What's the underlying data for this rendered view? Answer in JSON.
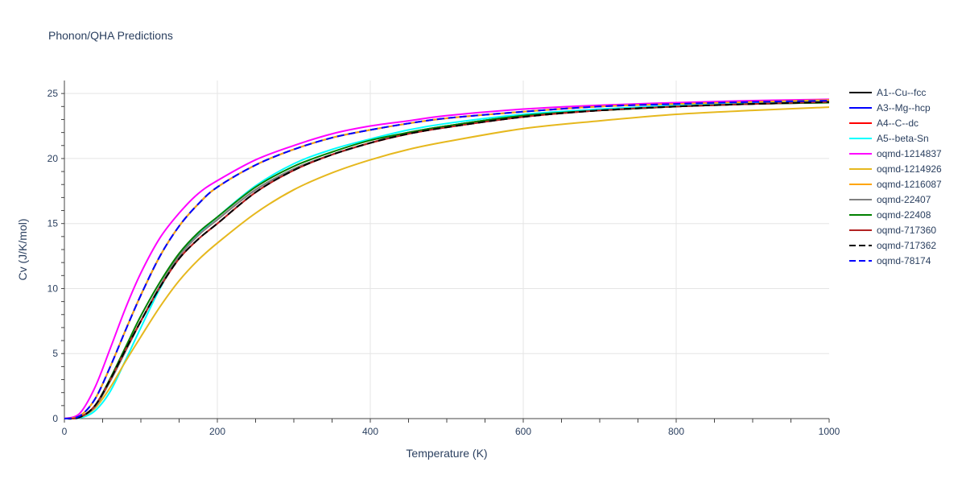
{
  "chart_data": {
    "type": "line",
    "title": "Phonon/QHA Predictions",
    "xlabel": "Temperature (K)",
    "ylabel": "Cv (J/K/mol)",
    "xlim": [
      0,
      1000
    ],
    "ylim": [
      0,
      26
    ],
    "xticks": [
      0,
      200,
      400,
      600,
      800,
      1000
    ],
    "yticks": [
      0,
      5,
      10,
      15,
      20,
      25
    ],
    "grid": true,
    "legend_position": "right",
    "x": [
      0,
      20,
      40,
      60,
      80,
      100,
      125,
      150,
      175,
      200,
      250,
      300,
      350,
      400,
      450,
      500,
      600,
      700,
      800,
      900,
      1000
    ],
    "series": [
      {
        "name": "A1--Cu--fcc",
        "color": "#000000",
        "dash": "solid",
        "values": [
          0,
          0.1,
          0.9,
          2.9,
          5.2,
          7.5,
          10.2,
          12.5,
          14.1,
          15.3,
          17.6,
          19.2,
          20.3,
          21.2,
          22.0,
          22.5,
          23.3,
          23.7,
          24.0,
          24.2,
          24.3
        ]
      },
      {
        "name": "A3--Mg--hcp",
        "color": "#0000ff",
        "dash": "solid",
        "values": [
          0,
          0.2,
          1.5,
          4.0,
          6.8,
          9.5,
          12.5,
          14.8,
          16.5,
          17.8,
          19.5,
          20.7,
          21.6,
          22.2,
          22.7,
          23.1,
          23.6,
          24.0,
          24.2,
          24.35,
          24.45
        ]
      },
      {
        "name": "A4--C--dc",
        "color": "#ff0000",
        "dash": "solid",
        "values": [
          0,
          0.1,
          1.0,
          3.0,
          5.3,
          7.5,
          10.1,
          12.3,
          13.8,
          15.0,
          17.4,
          19.1,
          20.3,
          21.2,
          21.9,
          22.4,
          23.2,
          23.7,
          24.0,
          24.2,
          24.35
        ]
      },
      {
        "name": "A5--beta-Sn",
        "color": "#00ffff",
        "dash": "solid",
        "values": [
          0,
          0.05,
          0.6,
          2.1,
          4.5,
          7.0,
          10.0,
          12.5,
          14.2,
          15.5,
          17.9,
          19.6,
          20.7,
          21.5,
          22.2,
          22.7,
          23.4,
          23.8,
          24.1,
          24.3,
          24.4
        ]
      },
      {
        "name": "oqmd-1214837",
        "color": "#ff00ff",
        "dash": "solid",
        "values": [
          0,
          0.4,
          2.4,
          5.4,
          8.5,
          11.2,
          13.9,
          15.8,
          17.3,
          18.3,
          19.9,
          21.0,
          21.9,
          22.5,
          22.9,
          23.3,
          23.8,
          24.1,
          24.3,
          24.45,
          24.55
        ]
      },
      {
        "name": "oqmd-1214926",
        "color": "#e6b81e",
        "dash": "solid",
        "values": [
          0,
          0.1,
          0.8,
          2.4,
          4.4,
          6.3,
          8.6,
          10.6,
          12.2,
          13.5,
          15.8,
          17.6,
          18.9,
          19.9,
          20.7,
          21.3,
          22.3,
          22.9,
          23.4,
          23.7,
          23.95
        ]
      },
      {
        "name": "oqmd-1216087",
        "color": "#ffa500",
        "dash": "solid",
        "values": [
          0,
          0.2,
          1.5,
          4.0,
          6.8,
          9.5,
          12.5,
          14.8,
          16.5,
          17.8,
          19.5,
          20.7,
          21.6,
          22.2,
          22.7,
          23.1,
          23.6,
          24.0,
          24.2,
          24.35,
          24.5
        ]
      },
      {
        "name": "oqmd-22407",
        "color": "#808080",
        "dash": "solid",
        "values": [
          0,
          0.1,
          0.9,
          2.9,
          5.2,
          7.5,
          10.2,
          12.5,
          14.1,
          15.3,
          17.6,
          19.2,
          20.3,
          21.2,
          22.0,
          22.5,
          23.3,
          23.7,
          24.0,
          24.2,
          24.3
        ]
      },
      {
        "name": "oqmd-22408",
        "color": "#008000",
        "dash": "solid",
        "values": [
          0,
          0.1,
          1.0,
          3.1,
          5.5,
          7.9,
          10.5,
          12.7,
          14.3,
          15.5,
          17.8,
          19.4,
          20.5,
          21.4,
          22.0,
          22.5,
          23.3,
          23.7,
          24.0,
          24.2,
          24.3
        ]
      },
      {
        "name": "oqmd-717360",
        "color": "#b22222",
        "dash": "solid",
        "values": [
          0,
          0.1,
          1.0,
          3.0,
          5.3,
          7.5,
          10.1,
          12.3,
          13.8,
          15.0,
          17.4,
          19.1,
          20.3,
          21.2,
          21.9,
          22.4,
          23.2,
          23.7,
          24.0,
          24.2,
          24.35
        ]
      },
      {
        "name": "oqmd-717362",
        "color": "#000000",
        "dash": "dash",
        "values": [
          0,
          0.1,
          1.0,
          3.0,
          5.3,
          7.5,
          10.1,
          12.3,
          13.8,
          15.0,
          17.4,
          19.1,
          20.3,
          21.2,
          21.9,
          22.4,
          23.2,
          23.7,
          24.0,
          24.2,
          24.35
        ]
      },
      {
        "name": "oqmd-78174",
        "color": "#0000ff",
        "dash": "dash",
        "values": [
          0,
          0.2,
          1.5,
          4.0,
          6.8,
          9.5,
          12.5,
          14.8,
          16.5,
          17.8,
          19.5,
          20.7,
          21.6,
          22.2,
          22.7,
          23.1,
          23.6,
          24.0,
          24.2,
          24.35,
          24.45
        ]
      }
    ]
  }
}
